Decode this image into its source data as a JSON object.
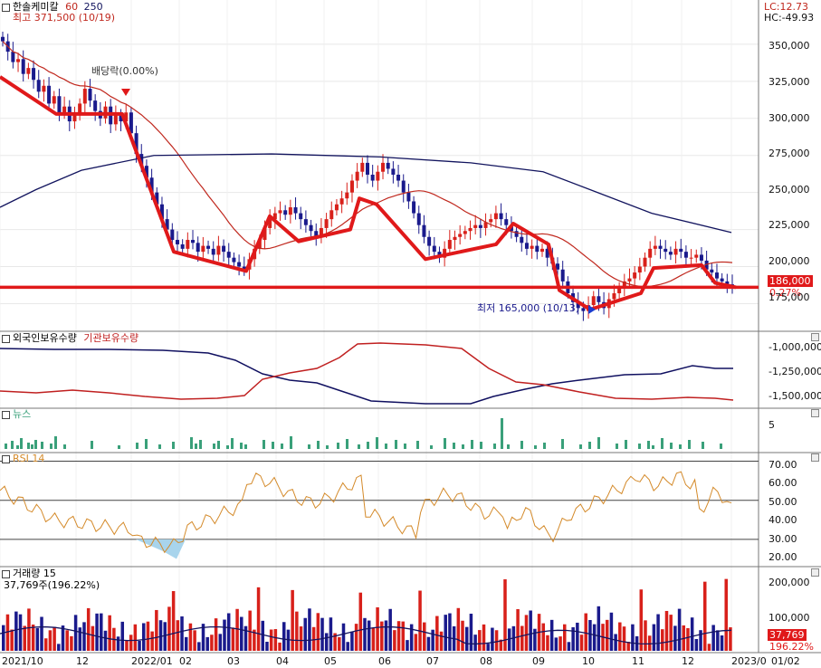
{
  "stock": {
    "name": "한솔케미칼",
    "ma1": "60",
    "ma2": "250",
    "high_label": "최고 371,500 (10/19)",
    "low_label": "최저 165,000 (10/13)",
    "div_label": "배당락(0.00%)",
    "lc": "LC:12.73",
    "hc": "HC:-49.93",
    "last_price": "186,000",
    "last_change": "0.27%"
  },
  "price_axis": {
    "ticks": [
      "350,000",
      "325,000",
      "300,000",
      "275,000",
      "250,000",
      "225,000",
      "200,000",
      "175,000"
    ],
    "values": [
      350000,
      325000,
      300000,
      275000,
      250000,
      225000,
      200000,
      175000
    ],
    "ylim": [
      160000,
      375000
    ]
  },
  "holdings": {
    "title_a": "외국인보유수량",
    "title_b": "기관보유수량",
    "ticks": [
      "-1,000,000",
      "-1,250,000",
      "-1,500,000"
    ]
  },
  "news": {
    "title": "뉴스",
    "ticks": [
      "5"
    ]
  },
  "rsi": {
    "title": "RSI 14",
    "ticks": [
      "70.00",
      "60.00",
      "50.00",
      "40.00",
      "30.00",
      "20.00"
    ],
    "values": [
      70,
      60,
      50,
      40,
      30,
      20
    ]
  },
  "volume": {
    "title": "거래량 15",
    "sub": "37,769주(196.22%)",
    "ticks": [
      "200,000",
      "100,000"
    ],
    "last": "37,769",
    "last_pct": "196.22%"
  },
  "x_axis": {
    "labels": [
      "2021/10",
      "12",
      "2022/01",
      "02",
      "03",
      "04",
      "05",
      "06",
      "07",
      "08",
      "09",
      "10",
      "11",
      "12",
      "2023/0",
      "01/02"
    ]
  },
  "colors": {
    "up": "#d8201a",
    "down": "#1a1a8c",
    "ma60": "#c0281e",
    "ma250": "#12145e",
    "trend": "#e0191a",
    "foreign": "#101060",
    "inst": "#c02020",
    "news": "#3aa07a",
    "rsi": "#d48a2a",
    "rsi_fill": "#a8d4ec",
    "vol_ma": "#141460"
  },
  "chart_data": [
    {
      "type": "candlestick",
      "title": "한솔케미칼",
      "ylim": [
        160000,
        375000
      ],
      "close": [
        352000,
        345000,
        338000,
        340000,
        330000,
        334000,
        326000,
        318000,
        322000,
        310000,
        315000,
        304000,
        308000,
        298000,
        302000,
        310000,
        320000,
        312000,
        305000,
        300000,
        308000,
        296000,
        302000,
        298000,
        304000,
        290000,
        276000,
        268000,
        260000,
        250000,
        242000,
        232000,
        225000,
        218000,
        215000,
        212000,
        218000,
        216000,
        210000,
        214000,
        212000,
        208000,
        214000,
        210000,
        206000,
        203000,
        200000,
        198000,
        205000,
        212000,
        218000,
        226000,
        232000,
        236000,
        238000,
        235000,
        240000,
        236000,
        232000,
        228000,
        224000,
        220000,
        226000,
        232000,
        238000,
        242000,
        246000,
        250000,
        258000,
        264000,
        270000,
        262000,
        258000,
        264000,
        270000,
        266000,
        262000,
        258000,
        250000,
        244000,
        236000,
        228000,
        220000,
        214000,
        210000,
        206000,
        212000,
        218000,
        220000,
        222000,
        224000,
        226000,
        228000,
        226000,
        230000,
        232000,
        236000,
        232000,
        228000,
        224000,
        220000,
        216000,
        212000,
        214000,
        210000,
        212000,
        206000,
        202000,
        198000,
        190000,
        182000,
        176000,
        172000,
        170000,
        174000,
        180000,
        176000,
        172000,
        178000,
        182000,
        186000,
        190000,
        192000,
        196000,
        200000,
        206000,
        212000,
        214000,
        212000,
        210000,
        208000,
        212000,
        210000,
        206000,
        206000,
        208000,
        204000,
        198000,
        196000,
        192000,
        190000,
        188000,
        186000
      ],
      "annotations": [
        "최고 371,500 (10/19)",
        "최저 165,000 (10/13)",
        "배당락(0.00%)"
      ]
    },
    {
      "type": "line",
      "series": [
        {
          "name": "외국인보유수량"
        },
        {
          "name": "기관보유수량"
        }
      ]
    },
    {
      "type": "bar",
      "series": [
        {
          "name": "뉴스"
        }
      ]
    },
    {
      "type": "line",
      "series": [
        {
          "name": "RSI 14"
        }
      ],
      "ylim": [
        17,
        73
      ],
      "reference_lines": [
        70,
        50,
        30
      ]
    },
    {
      "type": "bar",
      "series": [
        {
          "name": "거래량 15"
        }
      ],
      "last_value": 37769
    }
  ]
}
